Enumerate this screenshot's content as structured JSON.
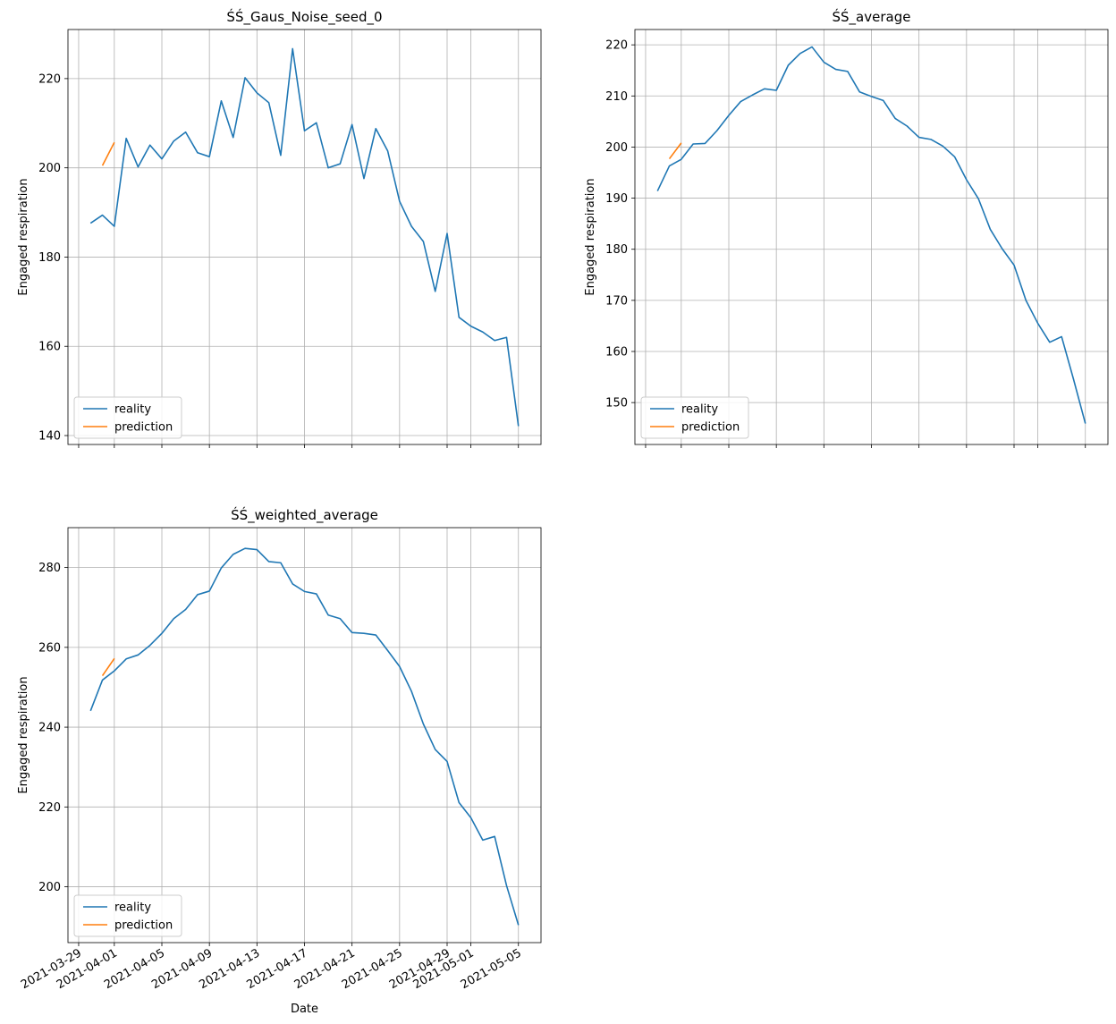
{
  "figure": {
    "xlabel": "Date",
    "ylabel": "Engaged respiration"
  },
  "chart_data": [
    {
      "type": "line",
      "title": "ŚŚ_Gaus_Noise_seed_0",
      "xlabel": "",
      "ylabel": "Engaged respiration",
      "ylim": [
        138,
        231
      ],
      "yticks": [
        140,
        160,
        180,
        200,
        220
      ],
      "grid": true,
      "legend": "lower-left",
      "x_start": "2021-03-30",
      "series": [
        {
          "name": "reality",
          "color": "#1f77b4",
          "x_offset_days": 0,
          "values": [
            187.6,
            189.4,
            186.9,
            206.6,
            200.2,
            205.1,
            202.0,
            206.0,
            208.0,
            203.4,
            202.5,
            215.0,
            206.8,
            220.2,
            216.8,
            214.6,
            202.8,
            226.7,
            208.3,
            210.1,
            200.0,
            200.9,
            209.7,
            197.6,
            208.8,
            203.8,
            192.5,
            186.9,
            183.5,
            172.3,
            185.3,
            166.5,
            164.5,
            163.2,
            161.3,
            162.0,
            142.1
          ]
        },
        {
          "name": "prediction",
          "color": "#ff7f0e",
          "x_offset_days": 1,
          "values": [
            200.5,
            205.7
          ]
        }
      ]
    },
    {
      "type": "line",
      "title": "ŚŚ_average",
      "xlabel": "",
      "ylabel": "Engaged respiration",
      "ylim": [
        141.8,
        223
      ],
      "yticks": [
        150,
        160,
        170,
        180,
        190,
        200,
        210,
        220
      ],
      "grid": true,
      "legend": "lower-left",
      "x_start": "2021-03-30",
      "series": [
        {
          "name": "reality",
          "color": "#1f77b4",
          "x_offset_days": 0,
          "values": [
            191.4,
            196.3,
            197.6,
            200.6,
            200.7,
            203.2,
            206.2,
            208.9,
            210.2,
            211.4,
            211.1,
            216.0,
            218.3,
            219.6,
            216.6,
            215.2,
            214.8,
            210.8,
            209.9,
            209.1,
            205.6,
            204.1,
            201.9,
            201.5,
            200.2,
            198.1,
            193.6,
            189.9,
            183.9,
            180.1,
            176.9,
            170.0,
            165.5,
            161.8,
            162.9,
            154.6,
            145.9
          ]
        },
        {
          "name": "prediction",
          "color": "#ff7f0e",
          "x_offset_days": 1,
          "values": [
            197.7,
            200.8
          ]
        }
      ]
    },
    {
      "type": "line",
      "title": "ŚŚ_weighted_average",
      "xlabel": "Date",
      "ylabel": "Engaged respiration",
      "ylim": [
        186,
        290
      ],
      "yticks": [
        200,
        220,
        240,
        260,
        280
      ],
      "grid": true,
      "legend": "lower-left",
      "x_start": "2021-03-30",
      "series": [
        {
          "name": "reality",
          "color": "#1f77b4",
          "x_offset_days": 0,
          "values": [
            244.1,
            251.8,
            254.1,
            257.1,
            258.1,
            260.5,
            263.5,
            267.2,
            269.5,
            273.2,
            274.1,
            279.9,
            283.3,
            284.8,
            284.5,
            281.5,
            281.2,
            275.9,
            274.0,
            273.4,
            268.1,
            267.2,
            263.7,
            263.5,
            263.1,
            259.2,
            255.2,
            249.0,
            240.8,
            234.4,
            231.4,
            221.1,
            217.3,
            211.7,
            212.6,
            200.3,
            190.4
          ]
        },
        {
          "name": "prediction",
          "color": "#ff7f0e",
          "x_offset_days": 1,
          "values": [
            252.9,
            257.2
          ]
        }
      ]
    }
  ],
  "x_axis": {
    "tick_labels": [
      "2021-03-29",
      "2021-04-01",
      "2021-04-05",
      "2021-04-09",
      "2021-04-13",
      "2021-04-17",
      "2021-04-21",
      "2021-04-25",
      "2021-04-29",
      "2021-05-01",
      "2021-05-05"
    ],
    "tick_day_offsets": [
      -1,
      2,
      6,
      10,
      14,
      18,
      22,
      26,
      30,
      32,
      36
    ]
  },
  "colors": {
    "reality": "#1f77b4",
    "prediction": "#ff7f0e",
    "grid": "#b0b0b0"
  }
}
